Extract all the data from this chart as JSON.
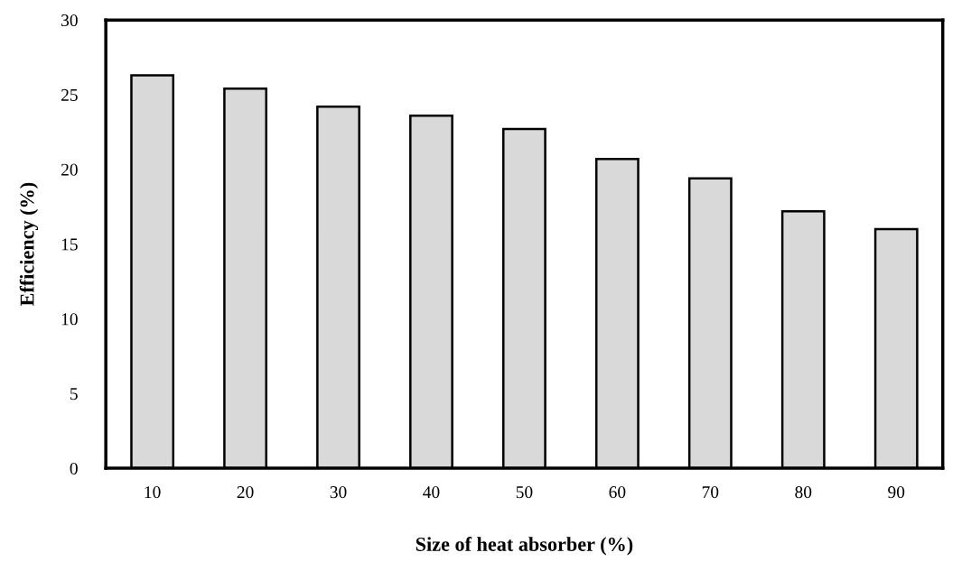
{
  "chart_data": {
    "type": "bar",
    "xlabel": "Size of heat absorber (%)",
    "ylabel": "Efficiency (%)",
    "categories": [
      "10",
      "20",
      "30",
      "40",
      "50",
      "60",
      "70",
      "80",
      "90"
    ],
    "values": [
      26.3,
      25.4,
      24.2,
      23.6,
      22.7,
      20.7,
      19.4,
      17.2,
      16.0
    ],
    "color": "#d9d9d9",
    "ylim": [
      0,
      30
    ],
    "yticks": [
      0,
      5,
      10,
      15,
      20,
      25,
      30
    ],
    "grid": false
  }
}
